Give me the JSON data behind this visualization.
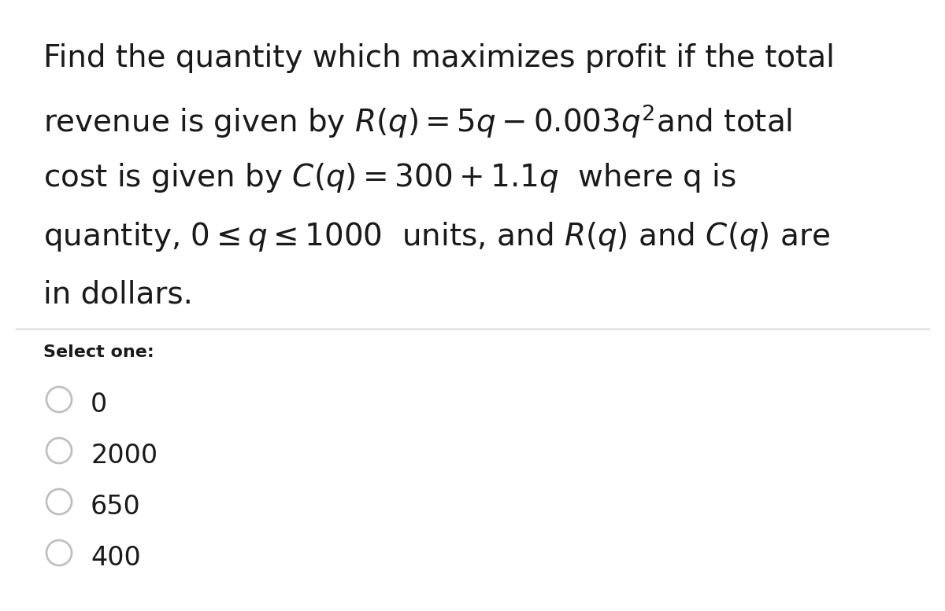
{
  "bg_color": "#ffffff",
  "text_color": "#1a1a1a",
  "separator_color": "#cccccc",
  "line1": "Find the quantity which maximizes profit if the total",
  "line2": "revenue is given by $R(q) = 5q - 0.003q^2$and total",
  "line3": "cost is given by $C(q) = 300 + 1.1q$  where q is",
  "line4": "quantity, $0 \\leq q \\leq 1000$  units, and $R(q)$ and $C(q)$ are",
  "line5": "in dollars.",
  "select_one_label": "Select one:",
  "options": [
    "0",
    "2000",
    "650",
    "400"
  ],
  "question_fontsize": 28,
  "select_fontsize": 16,
  "option_fontsize": 24,
  "figsize": [
    12.0,
    7.77
  ],
  "dpi": 100
}
